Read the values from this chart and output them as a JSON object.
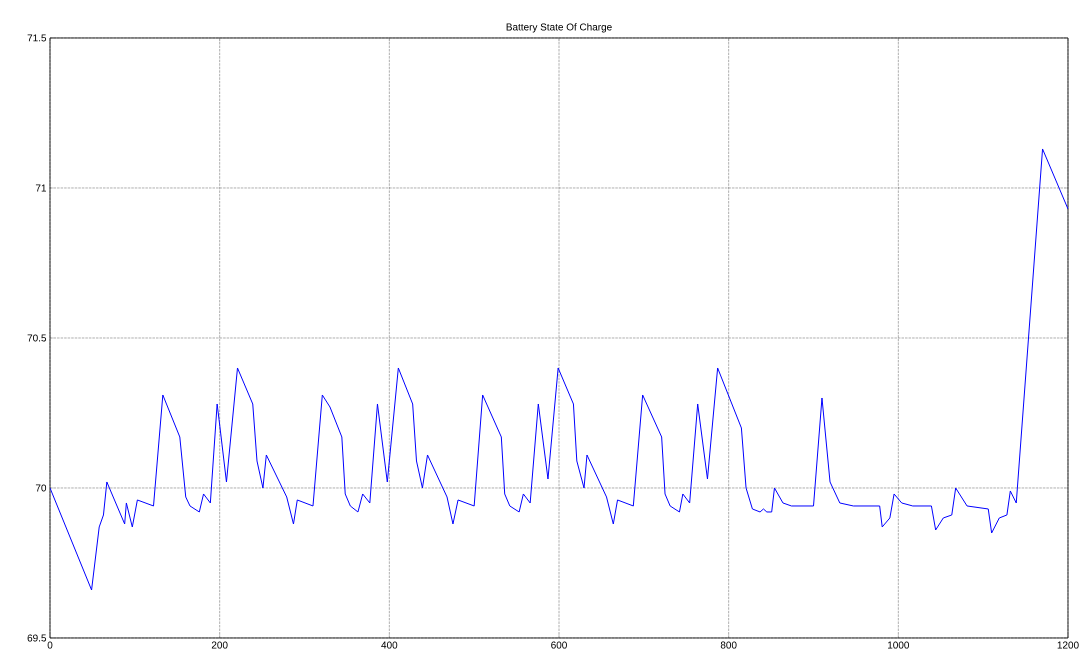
{
  "chart_data": {
    "type": "line",
    "title": "Battery State Of Charge",
    "x": [
      0,
      49,
      58,
      63,
      67,
      88,
      90,
      97,
      103,
      122,
      133,
      153,
      160,
      165,
      176,
      181,
      189,
      197,
      199.6,
      208,
      221,
      239,
      244,
      251,
      255,
      279,
      287,
      291.5,
      310,
      321,
      330,
      344,
      348,
      354,
      363,
      368.6,
      377,
      386,
      397.6,
      410.6,
      427.5,
      432,
      439,
      445,
      468,
      475,
      481,
      500,
      510,
      532,
      536,
      542,
      553,
      558,
      566,
      575.6,
      587,
      599,
      617,
      621,
      629.5,
      633,
      656,
      664,
      669,
      687.6,
      698.6,
      721,
      725,
      731,
      742,
      746,
      754,
      763.5,
      775,
      787,
      815,
      820.5,
      828,
      837,
      841,
      845,
      850.7,
      854,
      864,
      874,
      900,
      910,
      919.5,
      931,
      947,
      978,
      981,
      990,
      995,
      1004,
      1017,
      1039,
      1044,
      1053,
      1063,
      1067.6,
      1081,
      1106,
      1110,
      1119,
      1128,
      1132,
      1139,
      1170,
      1200
    ],
    "series": [
      {
        "color": "#0000ff",
        "values": [
          70.0,
          69.66,
          69.87,
          69.91,
          70.02,
          69.88,
          69.95,
          69.87,
          69.96,
          69.94,
          70.31,
          70.17,
          69.97,
          69.94,
          69.92,
          69.98,
          69.95,
          70.28,
          70.22,
          70.02,
          70.4,
          70.28,
          70.09,
          70.0,
          70.11,
          69.97,
          69.88,
          69.96,
          69.94,
          70.31,
          70.27,
          70.17,
          69.98,
          69.94,
          69.92,
          69.98,
          69.95,
          70.28,
          70.02,
          70.4,
          70.28,
          70.09,
          70.0,
          70.11,
          69.97,
          69.88,
          69.96,
          69.94,
          70.31,
          70.17,
          69.98,
          69.94,
          69.92,
          69.98,
          69.95,
          70.28,
          70.03,
          70.4,
          70.28,
          70.09,
          70.0,
          70.11,
          69.97,
          69.88,
          69.96,
          69.94,
          70.31,
          70.17,
          69.98,
          69.94,
          69.92,
          69.98,
          69.95,
          70.28,
          70.03,
          70.4,
          70.2,
          70.0,
          69.93,
          69.92,
          69.93,
          69.92,
          69.92,
          70.0,
          69.95,
          69.94,
          69.94,
          70.3,
          70.02,
          69.95,
          69.94,
          69.94,
          69.87,
          69.9,
          69.98,
          69.95,
          69.94,
          69.94,
          69.86,
          69.9,
          69.91,
          70.0,
          69.94,
          69.93,
          69.85,
          69.9,
          69.91,
          69.99,
          69.95,
          71.13,
          70.93
        ]
      }
    ],
    "xlim": [
      0,
      1200
    ],
    "ylim": [
      69.5,
      71.5
    ],
    "xticks": [
      0,
      200,
      400,
      600,
      800,
      1000,
      1200
    ],
    "yticks": [
      69.5,
      70,
      70.5,
      71,
      71.5
    ],
    "grid": true,
    "marker": "none",
    "line_style": "solid"
  }
}
